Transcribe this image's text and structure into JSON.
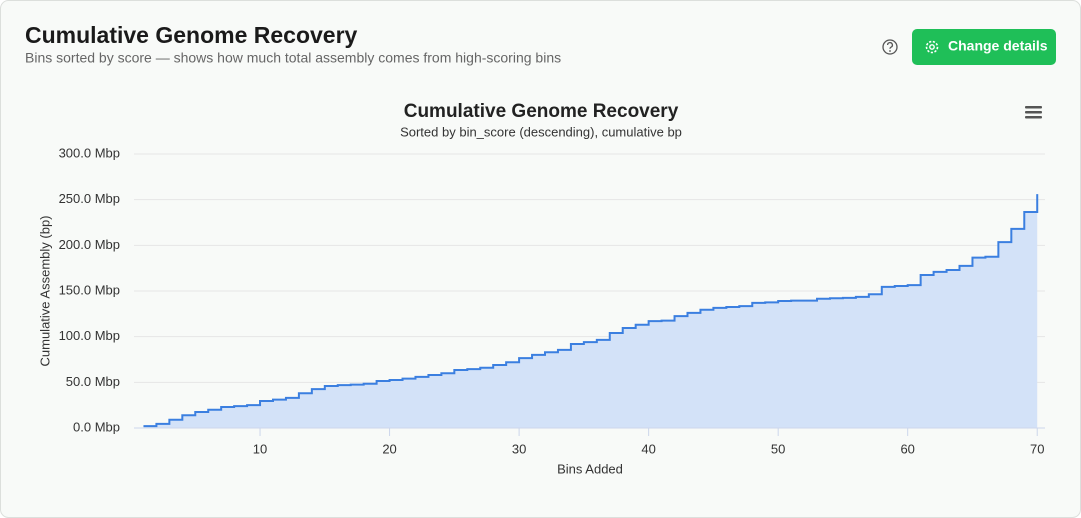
{
  "header": {
    "title": "Cumulative Genome Recovery",
    "subtitle": "Bins sorted by score — shows how much total assembly comes from high-scoring bins"
  },
  "actions": {
    "button": "Change details"
  },
  "chart_data": {
    "type": "step-area",
    "title": "Cumulative Genome Recovery",
    "subtitle": "Sorted by bin_score (descending), cumulative bp",
    "x_label": "Bins Added",
    "y_label": "Cumulative Assembly (bp)",
    "color": "#3b7fe0",
    "fill": "#d3e2f8",
    "grid": true,
    "x": [
      1,
      2,
      3,
      4,
      5,
      6,
      7,
      8,
      9,
      10,
      11,
      12,
      13,
      14,
      15,
      16,
      17,
      18,
      19,
      20,
      21,
      22,
      23,
      24,
      25,
      26,
      27,
      28,
      29,
      30,
      31,
      32,
      33,
      34,
      35,
      36,
      37,
      38,
      39,
      40,
      41,
      42,
      43,
      44,
      45,
      46,
      47,
      48,
      49,
      50,
      51,
      52,
      53,
      54,
      55,
      56,
      57,
      58,
      59,
      60,
      61,
      62,
      63,
      64,
      65,
      66,
      67,
      68,
      69,
      70
    ],
    "values": [
      2000000,
      4500000,
      9000000,
      14000000,
      17500000,
      20000000,
      23000000,
      24000000,
      25000000,
      29500000,
      31000000,
      33000000,
      38000000,
      42500000,
      46000000,
      47000000,
      47500000,
      48500000,
      51500000,
      52500000,
      54000000,
      56000000,
      58000000,
      60000000,
      63500000,
      64500000,
      66000000,
      69000000,
      72000000,
      76500000,
      80000000,
      83000000,
      85500000,
      92000000,
      94000000,
      96500000,
      104000000,
      109500000,
      113000000,
      117000000,
      117500000,
      122500000,
      126000000,
      129500000,
      131500000,
      132500000,
      133500000,
      137000000,
      137500000,
      139000000,
      139500000,
      139500000,
      141500000,
      142000000,
      142500000,
      143500000,
      146500000,
      154500000,
      155500000,
      156500000,
      167500000,
      171000000,
      173000000,
      177500000,
      186500000,
      187500000,
      203500000,
      218000000,
      236500000,
      256000000
    ],
    "xlim": [
      0.27,
      70.6
    ],
    "xticks": [
      10,
      20,
      30,
      40,
      50,
      60,
      70
    ],
    "ylim": [
      0,
      300000000
    ],
    "yticks": [
      {
        "value": 0,
        "label": "0.0 Mbp"
      },
      {
        "value": 50000000,
        "label": "50.0 Mbp"
      },
      {
        "value": 100000000,
        "label": "100.0 Mbp"
      },
      {
        "value": 150000000,
        "label": "150.0 Mbp"
      },
      {
        "value": 200000000,
        "label": "200.0 Mbp"
      },
      {
        "value": 250000000,
        "label": "250.0 Mbp"
      },
      {
        "value": 300000000,
        "label": "300.0 Mbp"
      }
    ]
  }
}
